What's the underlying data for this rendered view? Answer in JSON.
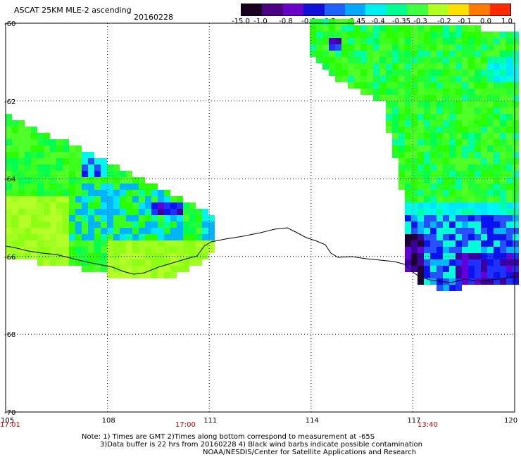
{
  "header": {
    "title": "ASCAT 25KM MLE-2 ascending",
    "date": "20160228"
  },
  "colorbar": {
    "labels": [
      "-15.0",
      "-1.0",
      "-0.8",
      "-0.6",
      "-0.5",
      "-0.45",
      "-0.4",
      "-0.35",
      "-0.3",
      "-0.2",
      "-0.1",
      "0.0",
      "1.0"
    ],
    "colors": [
      "#1a0020",
      "#4a0080",
      "#6a00c8",
      "#1010d8",
      "#2060ff",
      "#00a8ff",
      "#00f0f0",
      "#00ff90",
      "#40ff40",
      "#b0ff20",
      "#ffe000",
      "#ff7a00",
      "#ff2a00"
    ]
  },
  "axes": {
    "lat_labels": [
      "-60",
      "-62",
      "-64",
      "-66",
      "-68",
      "-70"
    ],
    "lon_labels": [
      "105",
      "108",
      "111",
      "114",
      "117",
      "120"
    ]
  },
  "times": [
    "17:01",
    "17:00",
    "13:40"
  ],
  "notes": [
    "Note: 1) Times are GMT 2)Times along bottom correspond to measurement at -65S",
    "3)Data buffer is 22 hrs from 20160228 4) Black wind barbs indicate possible contamination",
    "NOAA/NESDIS/Center for Satellite Applications and Research"
  ]
}
